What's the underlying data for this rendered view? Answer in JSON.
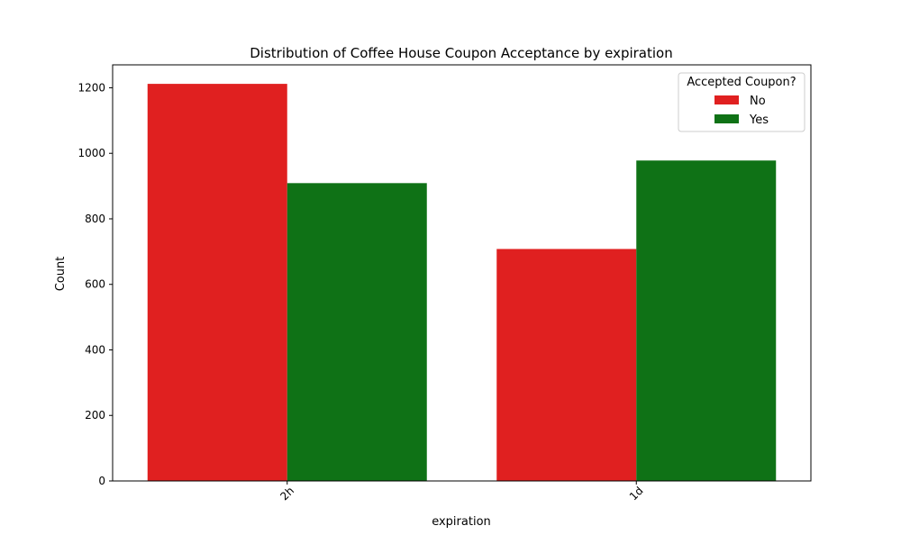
{
  "chart_data": {
    "type": "bar",
    "title": "Distribution of Coffee House Coupon Acceptance by expiration",
    "xlabel": "expiration",
    "ylabel": "Count",
    "categories": [
      "2h",
      "1d"
    ],
    "series": [
      {
        "name": "No",
        "color": "#e02020",
        "values": [
          1212,
          708
        ]
      },
      {
        "name": "Yes",
        "color": "#0f7216",
        "values": [
          909,
          978
        ]
      }
    ],
    "ylim": [
      0,
      1270
    ],
    "yticks": [
      0,
      200,
      400,
      600,
      800,
      1000,
      1200
    ],
    "legend": {
      "title": "Accepted Coupon?",
      "placement": "top-right"
    },
    "grid": false,
    "xtick_rotation_deg": 45
  }
}
